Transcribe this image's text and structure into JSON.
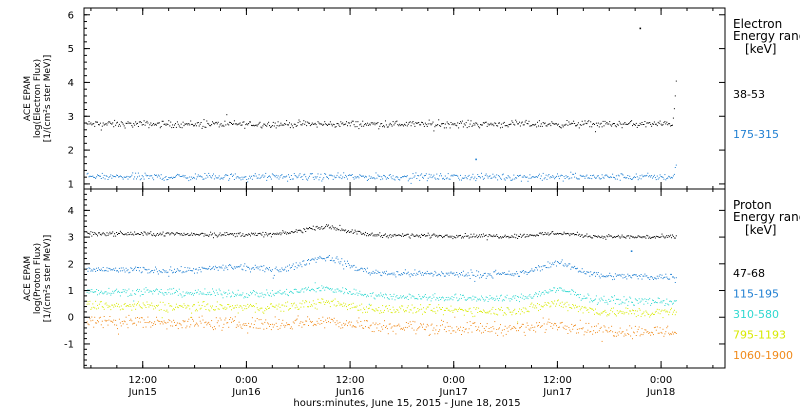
{
  "chart_data": {
    "type": "scatter",
    "xlabel": "hours:minutes, June 15, 2015 - June 18, 2015",
    "x_ticks": [
      {
        "time": "12:00",
        "date": "Jun15",
        "hours": 12
      },
      {
        "time": "0:00",
        "date": "Jun16",
        "hours": 24
      },
      {
        "time": "12:00",
        "date": "Jun16",
        "hours": 36
      },
      {
        "time": "0:00",
        "date": "Jun17",
        "hours": 48
      },
      {
        "time": "12:00",
        "date": "Jun17",
        "hours": 60
      },
      {
        "time": "0:00",
        "date": "Jun18",
        "hours": 72
      }
    ],
    "x_range_hours": [
      5.2,
      79.4
    ],
    "data_end_hours": 73.8,
    "panels": [
      {
        "id": "electron",
        "ylabel_lines": [
          "ACE EPAM",
          "log(Electron Flux)",
          "[1/(cm²s ster MeV)]"
        ],
        "ylim": [
          0.85,
          6.2
        ],
        "yticks": [
          1,
          2,
          3,
          4,
          5,
          6
        ],
        "legend_title_lines": [
          "Electron",
          "Energy range",
          "[keV]"
        ],
        "series": [
          {
            "name": "38-53",
            "color": "#000000",
            "baseline": 2.78,
            "noise": 0.05,
            "bumps": [],
            "spike": {
              "start_hours": 73.3,
              "end_hours": 73.8,
              "from": 2.7,
              "to": 4.4
            },
            "outliers": [
              {
                "hours": 69.5,
                "y": 5.62
              }
            ]
          },
          {
            "name": "175-315",
            "color": "#1f7fd2",
            "baseline": 1.22,
            "noise": 0.05,
            "bumps": [],
            "spike": {
              "start_hours": 73.4,
              "end_hours": 73.8,
              "from": 1.2,
              "to": 1.7
            },
            "outliers": [
              {
                "hours": 50.5,
                "y": 1.75
              }
            ]
          }
        ]
      },
      {
        "id": "proton",
        "ylabel_lines": [
          "ACE EPAM",
          "log(Proton Flux)",
          "[1/(cm²s ster MeV)]"
        ],
        "ylim": [
          -1.9,
          4.8
        ],
        "yticks": [
          -1,
          0,
          1,
          2,
          3,
          4
        ],
        "legend_title_lines": [
          "Proton",
          "Energy range",
          "[keV]"
        ],
        "series": [
          {
            "name": "47-68",
            "color": "#000000",
            "baseline": 3.15,
            "noise": 0.04,
            "bumps": [
              {
                "center_hours": 33,
                "width": 3.5,
                "amp": 0.3
              },
              {
                "center_hours": 60,
                "width": 3,
                "amp": 0.12
              }
            ],
            "slope": -0.002,
            "spike": null,
            "outliers": []
          },
          {
            "name": "115-195",
            "color": "#1f7fd2",
            "baseline": 1.8,
            "noise": 0.06,
            "bumps": [
              {
                "center_hours": 33,
                "width": 3.5,
                "amp": 0.55
              },
              {
                "center_hours": 60,
                "width": 3,
                "amp": 0.45
              },
              {
                "center_hours": 23,
                "width": 4,
                "amp": 0.15
              }
            ],
            "slope": -0.004,
            "spike": null,
            "outliers": [
              {
                "hours": 68.5,
                "y": 2.5
              }
            ]
          },
          {
            "name": "310-580",
            "color": "#2fd8d0",
            "baseline": 1.0,
            "noise": 0.07,
            "bumps": [
              {
                "center_hours": 33,
                "width": 4,
                "amp": 0.25
              },
              {
                "center_hours": 60,
                "width": 3,
                "amp": 0.35
              }
            ],
            "slope": -0.006,
            "spike": null,
            "outliers": []
          },
          {
            "name": "795-1193",
            "color": "#d8ea00",
            "baseline": 0.45,
            "noise": 0.09,
            "bumps": [
              {
                "center_hours": 33,
                "width": 4,
                "amp": 0.2
              },
              {
                "center_hours": 60,
                "width": 3,
                "amp": 0.3
              }
            ],
            "slope": -0.004,
            "spike": null,
            "outliers": []
          },
          {
            "name": "1060-1900",
            "color": "#f08a1a",
            "baseline": -0.12,
            "noise": 0.12,
            "bumps": [
              {
                "center_hours": 33,
                "width": 4,
                "amp": 0.15
              },
              {
                "center_hours": 60,
                "width": 3,
                "amp": 0.2
              }
            ],
            "slope": -0.006,
            "spike": null,
            "outliers": []
          }
        ]
      }
    ]
  }
}
